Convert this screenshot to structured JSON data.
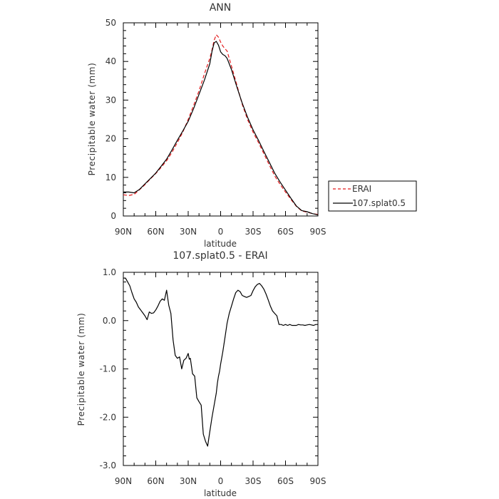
{
  "chart_data": [
    {
      "type": "line",
      "title": "ANN",
      "xlabel": "latitude",
      "ylabel": "Precipitable water (mm)",
      "xlim": [
        90,
        -90
      ],
      "ylim": [
        0,
        50
      ],
      "x_ticks": [
        90,
        60,
        30,
        0,
        -30,
        -60,
        -90
      ],
      "x_tick_labels": [
        "90N",
        "60N",
        "30N",
        "0",
        "30S",
        "60S",
        "90S"
      ],
      "y_ticks": [
        0,
        10,
        20,
        30,
        40,
        50
      ],
      "y_tick_labels": [
        "0",
        "10",
        "20",
        "30",
        "40",
        "50"
      ],
      "grid": false,
      "legend_placement": "right, outside plot",
      "series": [
        {
          "name": "ERAI",
          "color": "#e41a1c",
          "style": "dashed",
          "x": [
            90,
            85,
            80,
            75,
            70,
            65,
            60,
            55,
            50,
            45,
            40,
            35,
            30,
            25,
            20,
            15,
            10,
            8,
            6,
            4,
            2,
            0,
            -2,
            -4,
            -6,
            -10,
            -15,
            -20,
            -25,
            -30,
            -35,
            -40,
            -45,
            -50,
            -55,
            -60,
            -65,
            -70,
            -75,
            -80,
            -85,
            -90
          ],
          "y": [
            5.5,
            5.3,
            5.6,
            6.8,
            8.1,
            9.6,
            11.0,
            12.6,
            14.3,
            16.5,
            19.0,
            21.7,
            25.0,
            28.6,
            32.4,
            36.8,
            40.8,
            43.0,
            45.5,
            46.9,
            46.3,
            45.0,
            44.0,
            43.3,
            42.7,
            38.8,
            33.9,
            28.9,
            24.9,
            21.7,
            19.0,
            16.1,
            13.2,
            10.4,
            8.2,
            6.2,
            4.3,
            2.5,
            1.3,
            1.0,
            0.6,
            0.4
          ]
        },
        {
          "name": "107.splat0.5",
          "color": "#000000",
          "style": "solid",
          "x": [
            90,
            85,
            80,
            75,
            70,
            65,
            60,
            55,
            50,
            45,
            40,
            35,
            30,
            25,
            20,
            15,
            10,
            8,
            6,
            4,
            2,
            0,
            -2,
            -4,
            -6,
            -10,
            -15,
            -20,
            -25,
            -30,
            -35,
            -40,
            -45,
            -50,
            -55,
            -60,
            -65,
            -70,
            -75,
            -80,
            -85,
            -90
          ],
          "y": [
            6.2,
            6.2,
            6.0,
            6.9,
            8.3,
            9.7,
            11.1,
            12.9,
            14.7,
            17.1,
            19.6,
            22.0,
            24.5,
            27.8,
            31.5,
            35.2,
            39.4,
            42.6,
            44.8,
            45.2,
            44.2,
            42.5,
            41.8,
            41.5,
            40.8,
            37.9,
            33.4,
            29.2,
            25.5,
            22.3,
            19.6,
            16.7,
            13.9,
            11.1,
            8.8,
            6.7,
            4.6,
            2.6,
            1.4,
            1.1,
            0.6,
            0.3
          ]
        }
      ]
    },
    {
      "type": "line",
      "title": "107.splat0.5 - ERAI",
      "xlabel": "latitude",
      "ylabel": "Precipitable water (mm)",
      "xlim": [
        90,
        -90
      ],
      "ylim": [
        -3.0,
        1.0
      ],
      "x_ticks": [
        90,
        60,
        30,
        0,
        -30,
        -60,
        -90
      ],
      "x_tick_labels": [
        "90N",
        "60N",
        "30N",
        "0",
        "30S",
        "60S",
        "90S"
      ],
      "y_ticks": [
        1.0,
        0.0,
        -1.0,
        -2.0,
        -3.0
      ],
      "y_tick_labels": [
        "1.0",
        "0.0",
        "-1.0",
        "-2.0",
        "-3.0"
      ],
      "grid": false,
      "series": [
        {
          "color": "#000000",
          "style": "solid",
          "x": [
            90,
            88,
            86,
            84,
            82,
            80,
            78,
            76,
            74,
            72,
            70,
            68,
            66,
            64,
            62,
            60,
            58,
            56,
            54,
            52,
            50,
            48,
            46,
            44,
            42,
            40,
            38,
            36,
            34,
            32,
            30,
            29,
            28,
            26,
            24,
            22,
            20,
            18,
            16,
            14,
            12,
            10,
            8,
            6,
            4,
            3,
            2,
            1,
            0,
            -2,
            -4,
            -6,
            -8,
            -10,
            -12,
            -14,
            -16,
            -18,
            -20,
            -22,
            -24,
            -26,
            -28,
            -30,
            -32,
            -34,
            -36,
            -38,
            -40,
            -42,
            -44,
            -46,
            -48,
            -50,
            -52,
            -54,
            -56,
            -58,
            -60,
            -62,
            -64,
            -66,
            -68,
            -70,
            -72,
            -74,
            -76,
            -78,
            -80,
            -82,
            -84,
            -86,
            -88,
            -90
          ],
          "y": [
            0.88,
            0.88,
            0.8,
            0.72,
            0.58,
            0.45,
            0.38,
            0.28,
            0.22,
            0.16,
            0.1,
            0.02,
            0.18,
            0.15,
            0.16,
            0.22,
            0.3,
            0.4,
            0.45,
            0.42,
            0.63,
            0.32,
            0.15,
            -0.4,
            -0.72,
            -0.78,
            -0.75,
            -1.0,
            -0.82,
            -0.78,
            -0.68,
            -0.8,
            -0.78,
            -1.1,
            -1.15,
            -1.6,
            -1.68,
            -1.75,
            -2.35,
            -2.5,
            -2.6,
            -2.3,
            -2.0,
            -1.75,
            -1.5,
            -1.3,
            -1.15,
            -1.05,
            -0.9,
            -0.65,
            -0.35,
            -0.05,
            0.15,
            0.3,
            0.45,
            0.58,
            0.63,
            0.6,
            0.52,
            0.5,
            0.48,
            0.5,
            0.52,
            0.62,
            0.7,
            0.75,
            0.77,
            0.72,
            0.65,
            0.55,
            0.43,
            0.3,
            0.2,
            0.15,
            0.1,
            -0.08,
            -0.08,
            -0.1,
            -0.08,
            -0.1,
            -0.08,
            -0.1,
            -0.1,
            -0.1,
            -0.08,
            -0.09,
            -0.09,
            -0.1,
            -0.09,
            -0.08,
            -0.09,
            -0.1,
            -0.08,
            -0.08
          ]
        }
      ]
    }
  ]
}
